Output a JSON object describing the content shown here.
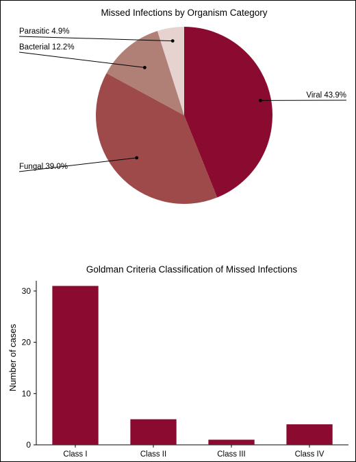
{
  "chart_data": [
    {
      "type": "pie",
      "title": "Missed Infections by Organism Category",
      "slices": [
        {
          "label": "Viral",
          "value": 43.9,
          "display": "Viral 43.9%",
          "color": "#8b0a30"
        },
        {
          "label": "Fungal",
          "value": 39.0,
          "display": "Fungal 39.0%",
          "color": "#9e4a4a"
        },
        {
          "label": "Bacterial",
          "value": 12.2,
          "display": "Bacterial 12.2%",
          "color": "#b07f76"
        },
        {
          "label": "Parasitic",
          "value": 4.9,
          "display": "Parasitic 4.9%",
          "color": "#e6d3cf"
        }
      ],
      "start": "12 o'clock",
      "direction": "clockwise",
      "legend": "none"
    },
    {
      "type": "bar",
      "title": "Goldman Criteria Classification of Missed Infections",
      "categories": [
        "Class I",
        "Class II",
        "Class III",
        "Class IV"
      ],
      "values": [
        31,
        5,
        1,
        4
      ],
      "xlabel": "",
      "ylabel": "Number of cases",
      "ylim": [
        0,
        32
      ],
      "yticks": [
        0,
        10,
        20,
        30
      ],
      "bar_color": "#8b0a30",
      "grid": false
    }
  ]
}
